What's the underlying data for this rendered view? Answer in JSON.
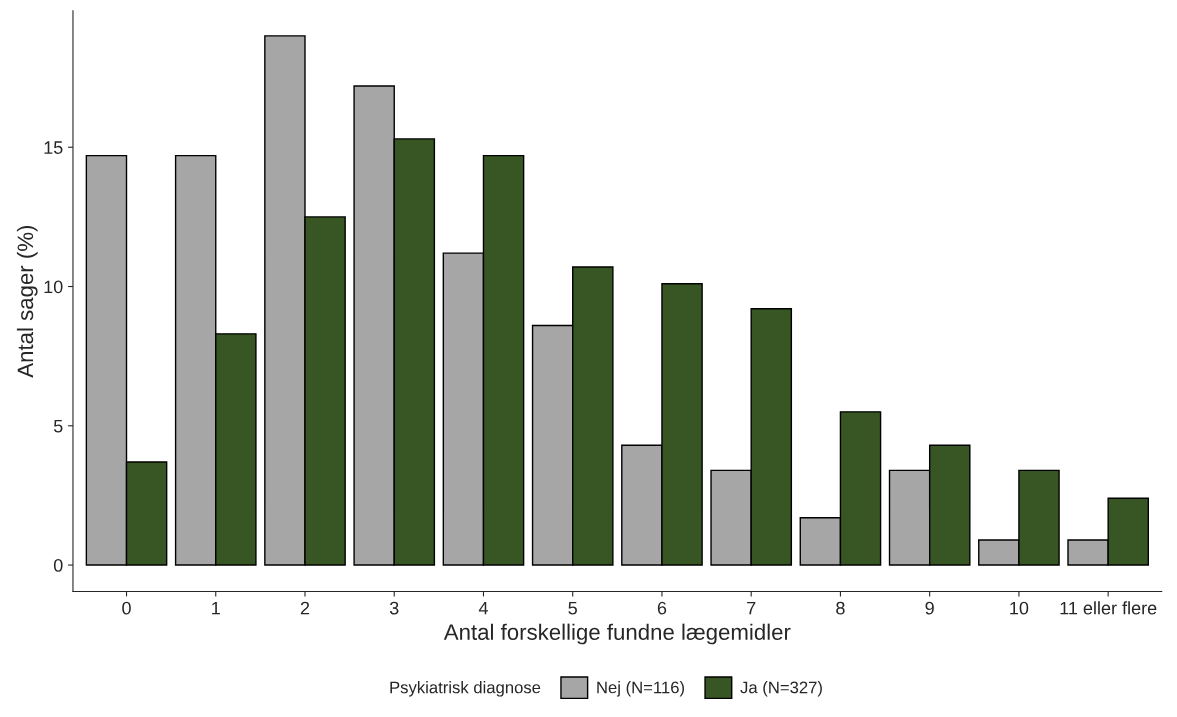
{
  "chart_data": {
    "type": "bar",
    "xlabel": "Antal forskellige fundne lægemidler",
    "ylabel": "Antal sager (%)",
    "legend_title": "Psykiatrisk diagnose",
    "categories": [
      "0",
      "1",
      "2",
      "3",
      "4",
      "5",
      "6",
      "7",
      "8",
      "9",
      "10",
      "11 eller flere"
    ],
    "series": [
      {
        "name": "Nej (N=116)",
        "color": "#a6a6a6",
        "values": [
          14.7,
          14.7,
          19.0,
          17.2,
          11.2,
          8.6,
          4.3,
          3.4,
          1.7,
          3.4,
          0.9,
          0.9
        ]
      },
      {
        "name": "Ja (N=327)",
        "color": "#375623",
        "values": [
          3.7,
          8.3,
          12.5,
          15.3,
          14.7,
          10.7,
          10.1,
          9.2,
          5.5,
          4.3,
          3.4,
          2.4
        ]
      }
    ],
    "ylim": [
      -0.95,
      19.9
    ],
    "yticks": [
      0,
      5,
      10,
      15
    ],
    "grid": false,
    "legend": "bottom"
  }
}
